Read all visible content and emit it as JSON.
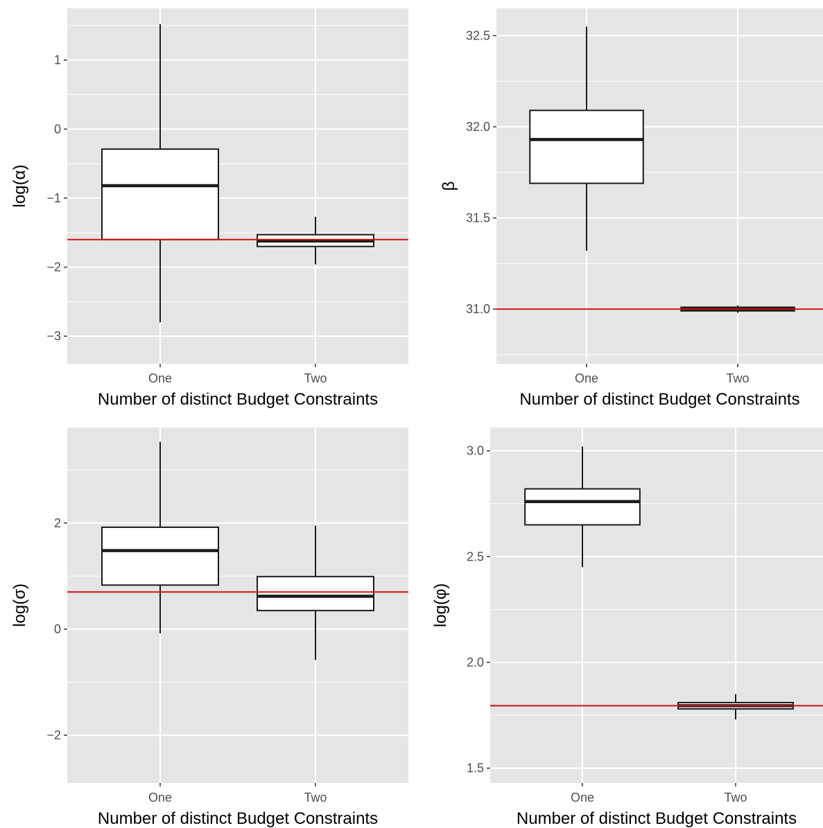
{
  "chart_data": [
    {
      "type": "box",
      "xlabel": "Number of distinct Budget Constraints",
      "ylabel": "log(α)",
      "categories": [
        "One",
        "Two"
      ],
      "ylim": [
        -3.4,
        1.75
      ],
      "yticks": [
        -3,
        -2,
        -1,
        0,
        1
      ],
      "yticklabels": [
        "−3",
        "−2",
        "−1",
        "0",
        "1"
      ],
      "boxes": [
        {
          "category": "One",
          "whisker_low": -2.8,
          "q1": -1.6,
          "median": -0.82,
          "q3": -0.29,
          "whisker_high": 1.52
        },
        {
          "category": "Two",
          "whisker_low": -1.96,
          "q1": -1.7,
          "median": -1.62,
          "q3": -1.53,
          "whisker_high": -1.27
        }
      ],
      "reference_line": -1.6
    },
    {
      "type": "box",
      "xlabel": "Number of distinct Budget Constraints",
      "ylabel": "β",
      "categories": [
        "One",
        "Two"
      ],
      "ylim": [
        30.7,
        32.65
      ],
      "yticks": [
        31.0,
        31.5,
        32.0,
        32.5
      ],
      "yticklabels": [
        "31.0",
        "31.5",
        "32.0",
        "32.5"
      ],
      "boxes": [
        {
          "category": "One",
          "whisker_low": 31.32,
          "q1": 31.69,
          "median": 31.93,
          "q3": 32.09,
          "whisker_high": 32.55
        },
        {
          "category": "Two",
          "whisker_low": 30.98,
          "q1": 30.99,
          "median": 31.0,
          "q3": 31.01,
          "whisker_high": 31.02
        }
      ],
      "reference_line": 31.0
    },
    {
      "type": "box",
      "xlabel": "Number of distinct Budget Constraints",
      "ylabel": "log(σ)",
      "categories": [
        "One",
        "Two"
      ],
      "ylim": [
        -2.9,
        3.8
      ],
      "yticks": [
        -2,
        0,
        2
      ],
      "yticklabels": [
        "−2",
        "0",
        "2"
      ],
      "boxes": [
        {
          "category": "One",
          "whisker_low": -0.08,
          "q1": 0.83,
          "median": 1.48,
          "q3": 1.92,
          "whisker_high": 3.53
        },
        {
          "category": "Two",
          "whisker_low": -0.58,
          "q1": 0.35,
          "median": 0.62,
          "q3": 0.99,
          "whisker_high": 1.95
        }
      ],
      "reference_line": 0.7
    },
    {
      "type": "box",
      "xlabel": "Number of distinct Budget Constraints",
      "ylabel": "log(φ)",
      "categories": [
        "One",
        "Two"
      ],
      "ylim": [
        1.43,
        3.11
      ],
      "yticks": [
        1.5,
        2.0,
        2.5,
        3.0
      ],
      "yticklabels": [
        "1.5",
        "2.0",
        "2.5",
        "3.0"
      ],
      "boxes": [
        {
          "category": "One",
          "whisker_low": 2.45,
          "q1": 2.65,
          "median": 2.76,
          "q3": 2.82,
          "whisker_high": 3.02
        },
        {
          "category": "Two",
          "whisker_low": 1.73,
          "q1": 1.78,
          "median": 1.795,
          "q3": 1.81,
          "whisker_high": 1.85
        }
      ],
      "reference_line": 1.795
    }
  ],
  "style": {
    "panel_background": "#e5e5e5",
    "grid_color": "#ffffff",
    "box_fill": "#ffffff",
    "box_stroke": "#1a1a1a",
    "reference_line_color": "#cc1111",
    "tick_label_color": "#4d4d4d"
  }
}
